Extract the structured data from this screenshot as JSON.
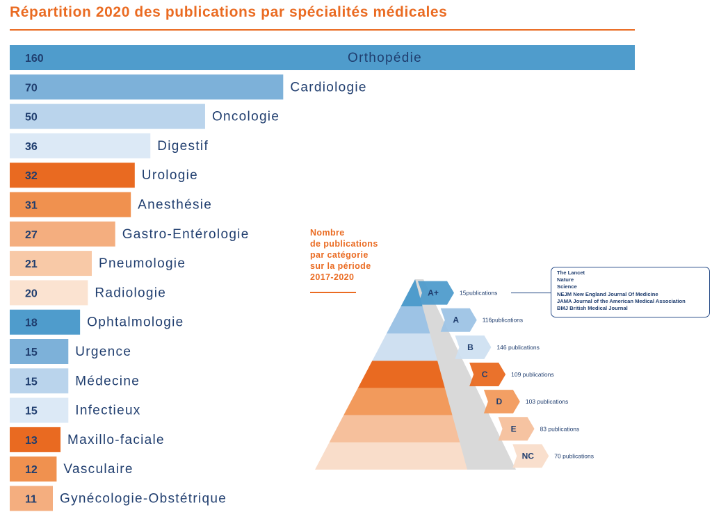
{
  "title": "Répartition 2020 des publications par spécialités médicales",
  "chart_data": [
    {
      "type": "bar",
      "orientation": "horizontal",
      "title": "Répartition 2020 des publications par spécialités médicales",
      "categories": [
        "Orthopédie",
        "Cardiologie",
        "Oncologie",
        "Digestif",
        "Urologie",
        "Anesthésie",
        "Gastro-Entérologie",
        "Pneumologie",
        "Radiologie",
        "Ophtalmologie",
        "Urgence",
        "Médecine",
        "Infectieux",
        "Maxillo-faciale",
        "Vasculaire",
        "Gynécologie-Obstétrique"
      ],
      "values": [
        160,
        70,
        50,
        36,
        32,
        31,
        27,
        21,
        20,
        18,
        15,
        15,
        15,
        13,
        12,
        11
      ],
      "xlim": [
        0,
        160
      ],
      "grid": false,
      "colors": [
        "#4f9ccc",
        "#7db1d9",
        "#bad4ec",
        "#dce9f6",
        "#e96a21",
        "#f0914f",
        "#f4ae7f",
        "#f8c9a7",
        "#fbe3d1",
        "#4f9ccc",
        "#7db1d9",
        "#bad4ec",
        "#dce9f6",
        "#e96a21",
        "#f0914f",
        "#f4ae7f"
      ],
      "value_colors": [
        "#1f3d6e",
        "#1f3d6e",
        "#1f3d6e",
        "#1f3d6e",
        "#1f3d6e",
        "#1f3d6e",
        "#1f3d6e",
        "#1f3d6e",
        "#1f3d6e",
        "#1f3d6e",
        "#1f3d6e",
        "#1f3d6e",
        "#1f3d6e",
        "#1f3d6e",
        "#1f3d6e",
        "#1f3d6e"
      ]
    },
    {
      "type": "pyramid",
      "title": "Nombre de publications par catégorie sur la période 2017-2020",
      "categories": [
        "A+",
        "A",
        "B",
        "C",
        "D",
        "E",
        "NC"
      ],
      "values": [
        15,
        116,
        146,
        109,
        103,
        83,
        70
      ],
      "labels": [
        "15publications",
        "116publications",
        "146 publications",
        "109 publications",
        "103 publications",
        "83 publications",
        "70 publications"
      ],
      "colors": [
        "#4f9ccc",
        "#9dc3e5",
        "#cfe0f1",
        "#e96a21",
        "#f29a5c",
        "#f6c09c",
        "#f9ddca"
      ]
    }
  ],
  "side_note": [
    "Nombre",
    "de publications",
    "par catégorie",
    "sur la période",
    "2017-2020"
  ],
  "journals": [
    "The Lancet",
    "Nature",
    "Science",
    "NEJM New England Journal Of Medicine",
    "JAMA Journal of the American Medical Association",
    "BMJ British Medical Journal"
  ]
}
